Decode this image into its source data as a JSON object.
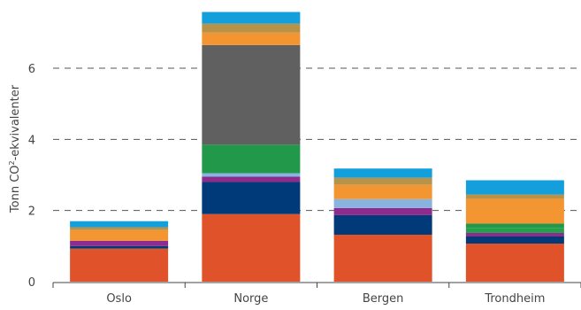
{
  "chart_data": {
    "type": "bar",
    "stacked": true,
    "categories": [
      "Oslo",
      "Norge",
      "Bergen",
      "Trondheim"
    ],
    "ylabel_main": "Tonn CO",
    "ylabel_sup": "2",
    "ylabel_tail": "-ekvivalenter",
    "xlabel": "",
    "ylim": [
      0,
      7.8
    ],
    "yticks": [
      0,
      2,
      4,
      6
    ],
    "grid": "horizontal-dashed",
    "series": [
      {
        "color": "#e0522a",
        "values": [
          0.93,
          1.9,
          1.32,
          1.07
        ]
      },
      {
        "color": "#003a78",
        "values": [
          0.07,
          0.9,
          0.55,
          0.2
        ]
      },
      {
        "color": "#8e2c8e",
        "values": [
          0.15,
          0.15,
          0.2,
          0.1
        ]
      },
      {
        "color": "#24a14a",
        "values": [
          0.0,
          0.0,
          0.0,
          0.13
        ]
      },
      {
        "color": "#8ab4e0",
        "values": [
          0.0,
          0.1,
          0.25,
          0.0
        ]
      },
      {
        "color": "#22994a",
        "values": [
          0.0,
          0.8,
          0.0,
          0.13
        ]
      },
      {
        "color": "#606060",
        "values": [
          0.0,
          2.8,
          0.0,
          0.0
        ]
      },
      {
        "color": "#f39530",
        "values": [
          0.3,
          0.35,
          0.4,
          0.7
        ]
      },
      {
        "color": "#b9924a",
        "values": [
          0.08,
          0.25,
          0.2,
          0.12
        ]
      },
      {
        "color": "#129fdc",
        "values": [
          0.17,
          0.33,
          0.26,
          0.4
        ]
      }
    ]
  }
}
